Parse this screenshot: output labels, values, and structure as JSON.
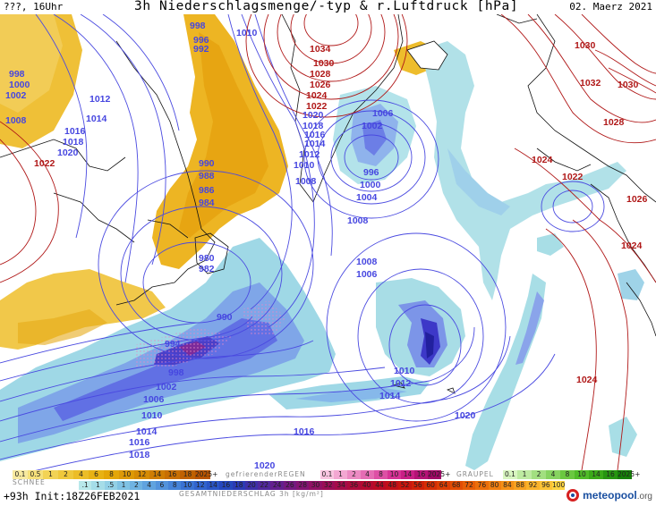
{
  "header": {
    "left": "???, 16Uhr",
    "title": "3h Niederschlagsmenge/-typ & r.Luftdruck [hPa]",
    "date": "02. Maerz 2021"
  },
  "footer": {
    "run": "+93h  Init:18Z26FEB2021",
    "brand": "meteopool",
    "brand_tld": ".org"
  },
  "legend": {
    "snow_label": "SCHNEE",
    "freezing_rain_label": "gefrierenderREGEN",
    "graupel_label": "GRAUPEL",
    "total_label": "GESAMTNIEDERSCHLAG 3h [kg/m²]",
    "snow_values": [
      "0.1",
      "0.5",
      "1",
      "2",
      "4",
      "6",
      "8",
      "10",
      "12",
      "14",
      "16",
      "18",
      "2025+"
    ],
    "freezing_values": [
      "0.1",
      "1",
      "2",
      "4",
      "8",
      "10",
      "14",
      "16",
      "2025+"
    ],
    "graupel_values": [
      "0.1",
      "1",
      "2",
      "4",
      "8",
      "10",
      "14",
      "16",
      "2025+"
    ],
    "total_values": [
      ".1",
      "1",
      ".5",
      "1",
      "2",
      "4",
      "6",
      "8",
      "10",
      "12",
      "14",
      "16",
      "18",
      "20",
      "22",
      "24",
      "26",
      "28",
      "30",
      "32",
      "34",
      "36",
      "40",
      "44",
      "48",
      "52",
      "56",
      "60",
      "64",
      "68",
      "72",
      "76",
      "80",
      "84",
      "88",
      "92",
      "96",
      "100"
    ],
    "colors": {
      "snow": [
        "#f7e9a0",
        "#f5e07a",
        "#f2d355",
        "#efc83b",
        "#ecbd27",
        "#e8b214",
        "#e4a608",
        "#dd9906",
        "#d68b04",
        "#cf7d03",
        "#c86f02",
        "#c06101",
        "#b85300"
      ],
      "freezing": [
        "#f9c4e0",
        "#f3a7d2",
        "#ec8ac3",
        "#e56cb4",
        "#de4fa5",
        "#d73296",
        "#c91f86",
        "#b51276",
        "#a10866"
      ],
      "graupel": [
        "#d8f5c0",
        "#bdeaa0",
        "#a2df80",
        "#86d360",
        "#6bc840",
        "#50bc28",
        "#3aa918",
        "#269510",
        "#168008"
      ],
      "total": [
        "#b8e8ea",
        "#a5dde8",
        "#92d0e6",
        "#7fc2e4",
        "#6fb3e2",
        "#60a3df",
        "#5293dc",
        "#4583d8",
        "#3a72d3",
        "#3163cd",
        "#2a55c6",
        "#2547be",
        "#2b3ab4",
        "#3e30a8",
        "#51289c",
        "#63208e",
        "#741980",
        "#831472",
        "#901064",
        "#9b0d56",
        "#a50b49",
        "#ad0a3c",
        "#b40a30",
        "#bb0b24",
        "#c20f18",
        "#c9160e",
        "#d02108",
        "#d62e05",
        "#dc3d04",
        "#e24c04",
        "#e75d06",
        "#ec6e0a",
        "#f07f10",
        "#f49017",
        "#f7a120",
        "#fab22a",
        "#fcc335",
        "#fdd442"
      ]
    }
  },
  "map": {
    "isobars_left": [
      {
        "v": "998",
        "c": "#3b3bd6"
      },
      {
        "v": "1000",
        "c": "#3b3bd6"
      },
      {
        "v": "1002",
        "c": "#3b3bd6"
      },
      {
        "v": "1008",
        "c": "#3b3bd6"
      },
      {
        "v": "1012",
        "c": "#3b3bd6"
      },
      {
        "v": "1014",
        "c": "#3b3bd6"
      },
      {
        "v": "1016",
        "c": "#3b3bd6"
      },
      {
        "v": "1018",
        "c": "#3b3bd6"
      },
      {
        "v": "1020",
        "c": "#3b3bd6"
      },
      {
        "v": "1022",
        "c": "#a01010"
      }
    ],
    "isobar_labels": [
      {
        "t": "998",
        "c": "#4646e0"
      },
      {
        "t": "1000",
        "c": "#4646e0"
      },
      {
        "t": "1002",
        "c": "#4646e0"
      },
      {
        "t": "1008",
        "c": "#4646e0"
      },
      {
        "t": "1012",
        "c": "#4646e0"
      },
      {
        "t": "1014",
        "c": "#4646e0"
      },
      {
        "t": "1016",
        "c": "#4646e0"
      },
      {
        "t": "1018",
        "c": "#4646e0"
      },
      {
        "t": "1020",
        "c": "#4646e0"
      },
      {
        "t": "1022",
        "c": "#b01818"
      },
      {
        "t": "998",
        "c": "#4646e0"
      },
      {
        "t": "996",
        "c": "#4646e0"
      },
      {
        "t": "992",
        "c": "#4646e0"
      },
      {
        "t": "1010",
        "c": "#4646e0"
      },
      {
        "t": "1034",
        "c": "#b01818"
      },
      {
        "t": "1030",
        "c": "#b01818"
      },
      {
        "t": "1028",
        "c": "#b01818"
      },
      {
        "t": "1026",
        "c": "#b01818"
      },
      {
        "t": "1024",
        "c": "#b01818"
      },
      {
        "t": "1022",
        "c": "#b01818"
      },
      {
        "t": "1020",
        "c": "#4646e0"
      },
      {
        "t": "1018",
        "c": "#4646e0"
      },
      {
        "t": "1016",
        "c": "#4646e0"
      },
      {
        "t": "1014",
        "c": "#4646e0"
      },
      {
        "t": "1012",
        "c": "#4646e0"
      },
      {
        "t": "1010",
        "c": "#4646e0"
      },
      {
        "t": "1008",
        "c": "#4646e0"
      },
      {
        "t": "1006",
        "c": "#4646e0"
      },
      {
        "t": "1002",
        "c": "#4646e0"
      },
      {
        "t": "996",
        "c": "#4646e0"
      },
      {
        "t": "1000",
        "c": "#4646e0"
      },
      {
        "t": "1004",
        "c": "#4646e0"
      },
      {
        "t": "1008",
        "c": "#4646e0"
      },
      {
        "t": "990",
        "c": "#4646e0"
      },
      {
        "t": "988",
        "c": "#4646e0"
      },
      {
        "t": "986",
        "c": "#4646e0"
      },
      {
        "t": "984",
        "c": "#4646e0"
      },
      {
        "t": "980",
        "c": "#4646e0"
      },
      {
        "t": "982",
        "c": "#4646e0"
      },
      {
        "t": "1008",
        "c": "#4646e0"
      },
      {
        "t": "1006",
        "c": "#4646e0"
      },
      {
        "t": "990",
        "c": "#4646e0"
      },
      {
        "t": "994",
        "c": "#4646e0"
      },
      {
        "t": "998",
        "c": "#4646e0"
      },
      {
        "t": "1002",
        "c": "#4646e0"
      },
      {
        "t": "1006",
        "c": "#4646e0"
      },
      {
        "t": "1010",
        "c": "#4646e0"
      },
      {
        "t": "1014",
        "c": "#4646e0"
      },
      {
        "t": "1016",
        "c": "#4646e0"
      },
      {
        "t": "1018",
        "c": "#4646e0"
      },
      {
        "t": "1016",
        "c": "#4646e0"
      },
      {
        "t": "1020",
        "c": "#4646e0"
      },
      {
        "t": "1010",
        "c": "#4646e0"
      },
      {
        "t": "1012",
        "c": "#4646e0"
      },
      {
        "t": "1014",
        "c": "#4646e0"
      },
      {
        "t": "1020",
        "c": "#4646e0"
      },
      {
        "t": "1030",
        "c": "#b01818"
      },
      {
        "t": "1032",
        "c": "#b01818"
      },
      {
        "t": "1030",
        "c": "#b01818"
      },
      {
        "t": "1028",
        "c": "#b01818"
      },
      {
        "t": "1024",
        "c": "#b01818"
      },
      {
        "t": "1022",
        "c": "#b01818"
      },
      {
        "t": "1026",
        "c": "#b01818"
      },
      {
        "t": "1024",
        "c": "#b01818"
      },
      {
        "t": "1024",
        "c": "#b01818"
      }
    ]
  }
}
